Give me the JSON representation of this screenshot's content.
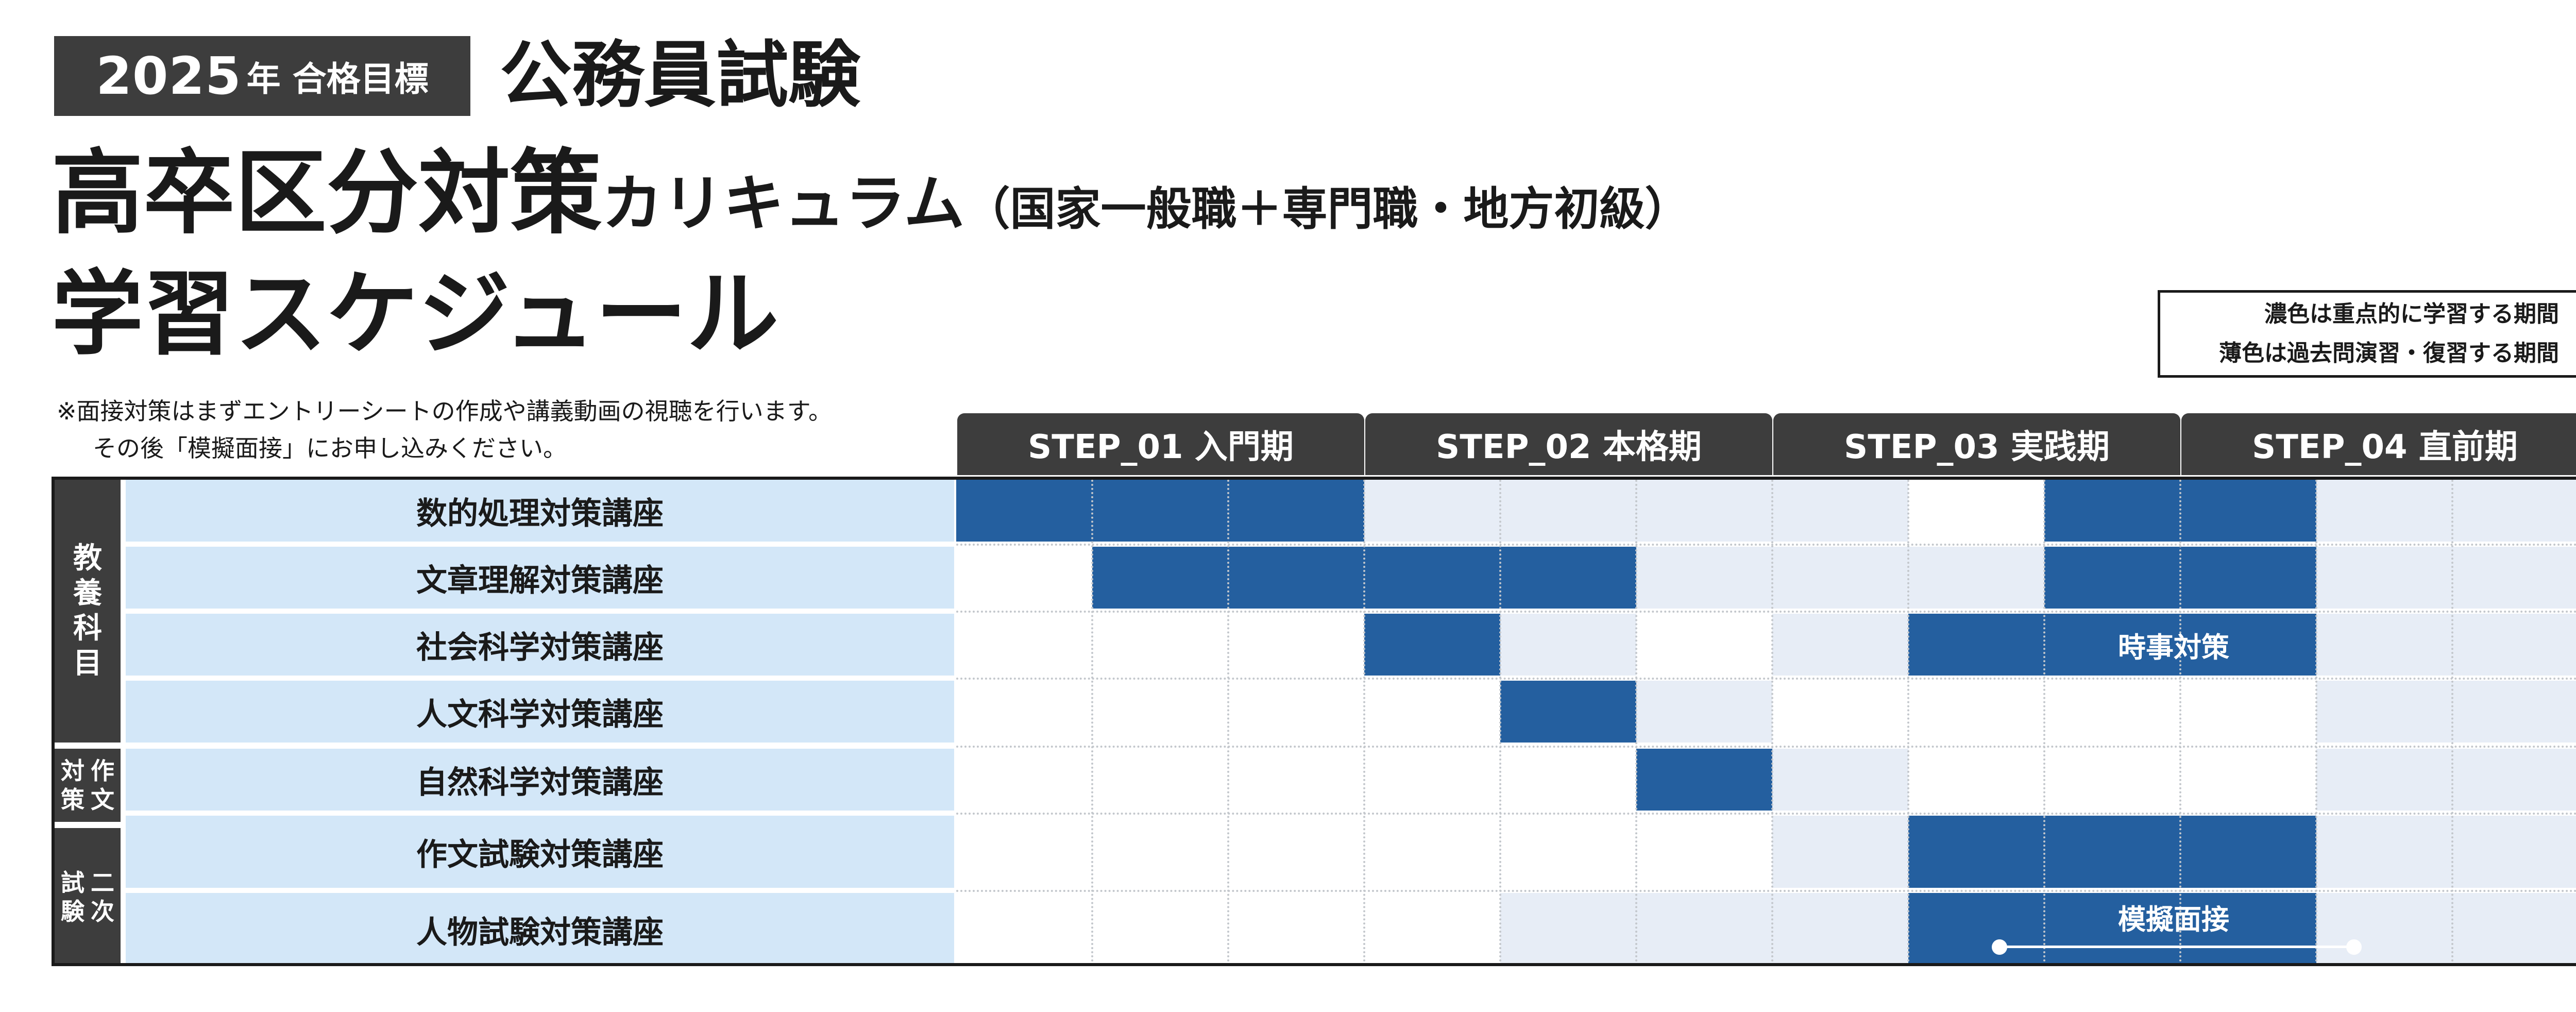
{
  "header": {
    "badge_year": "2025",
    "badge_suffix": "年 合格目標",
    "exam": "公務員試験",
    "title_main": "高卒区分対策",
    "title_mid": "カリキュラム",
    "title_sub": "（国家一般職＋専門職・地方初級）",
    "title_line3": "学習スケジュール"
  },
  "legend": {
    "line1": "濃色は重点的に学習する期間",
    "line2": "薄色は過去問演習・復習する期間"
  },
  "note": {
    "line1": "※面接対策はまずエントリーシートの作成や講義動画の視聴を行います。",
    "line2": "その後「模擬面接」にお申し込みください。"
  },
  "steps": [
    "STEP_01 入門期",
    "STEP_02 本格期",
    "STEP_03 実践期",
    "STEP_04 直前期"
  ],
  "groups": [
    "教養科目",
    "作文対策",
    "二次試験"
  ],
  "courses": [
    "数的処理対策講座",
    "文章理解対策講座",
    "社会科学対策講座",
    "人文科学対策講座",
    "自然科学対策講座",
    "作文試験対策講座",
    "人物試験対策講座"
  ],
  "schedule": {
    "period_count": 12,
    "rows": [
      [
        "dark",
        "dark",
        "dark",
        "light",
        "light",
        "light",
        "light",
        "white",
        "dark",
        "dark",
        "light",
        "light"
      ],
      [
        "white",
        "dark",
        "dark",
        "dark",
        "dark",
        "light",
        "light",
        "light",
        "dark",
        "dark",
        "light",
        "light"
      ],
      [
        "white",
        "white",
        "white",
        "dark",
        "light",
        "white",
        "light",
        "dark",
        "dark",
        "dark",
        "light",
        "light"
      ],
      [
        "white",
        "white",
        "white",
        "white",
        "dark",
        "light",
        "white",
        "white",
        "white",
        "white",
        "light",
        "light"
      ],
      [
        "white",
        "white",
        "white",
        "white",
        "white",
        "dark",
        "light",
        "white",
        "white",
        "white",
        "light",
        "light"
      ],
      [
        "white",
        "white",
        "white",
        "white",
        "white",
        "white",
        "light",
        "dark",
        "dark",
        "dark",
        "light",
        "light"
      ],
      [
        "white",
        "white",
        "white",
        "white",
        "light",
        "light",
        "light",
        "dark",
        "dark",
        "dark",
        "light",
        "light"
      ]
    ]
  },
  "bar_labels": {
    "current_affairs": "時事対策",
    "mock_interview": "模擬面接"
  },
  "colors": {
    "dark": "#245f9f",
    "light": "#e7edf6",
    "course_bg": "#d3e7f8",
    "header_bg": "#3d3d3d"
  }
}
